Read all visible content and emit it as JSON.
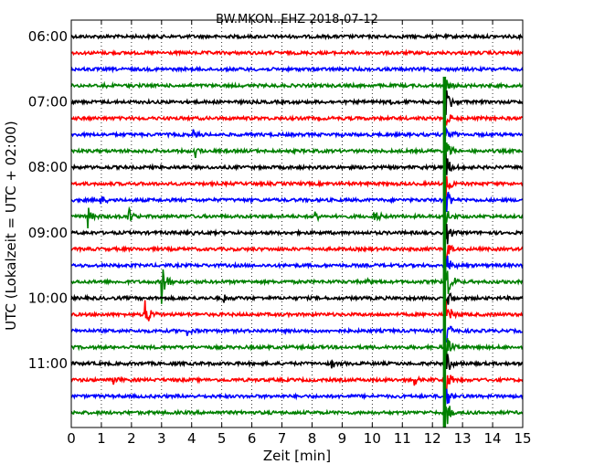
{
  "chart_data": {
    "type": "line",
    "title": "BW.MKON..EHZ 2018-07-12",
    "xlabel": "Zeit  [min]",
    "ylabel": "UTC (Lokalzeit = UTC + 02:00)",
    "xlim": [
      0,
      15
    ],
    "x_ticks": [
      0,
      1,
      2,
      3,
      4,
      5,
      6,
      7,
      8,
      9,
      10,
      11,
      12,
      13,
      14,
      15
    ],
    "x_tick_labels": [
      "0",
      "1",
      "2",
      "3",
      "4",
      "5",
      "6",
      "7",
      "8",
      "9",
      "10",
      "11",
      "12",
      "13",
      "14",
      "15"
    ],
    "grid": "vertical dotted at every minute",
    "y_tick_labels": [
      "06:00",
      "07:00",
      "08:00",
      "09:00",
      "10:00",
      "11:00"
    ],
    "y_tick_rows": [
      0,
      4,
      8,
      12,
      16,
      20
    ],
    "colors": [
      "#000000",
      "#ff0000",
      "#0000ff",
      "#008000"
    ],
    "traces": [
      {
        "start": "06:00",
        "color": "#000000",
        "events": []
      },
      {
        "start": "06:15",
        "color": "#ff0000",
        "events": []
      },
      {
        "start": "06:30",
        "color": "#0000ff",
        "events": []
      },
      {
        "start": "06:45",
        "color": "#008000",
        "events": [
          {
            "t": 1.0,
            "amp": 0.15
          },
          {
            "t": 12.4,
            "amp": 0.5
          }
        ]
      },
      {
        "start": "07:00",
        "color": "#000000",
        "events": [
          {
            "t": 10.6,
            "amp": 0.2
          },
          {
            "t": 12.4,
            "amp": 1.0
          }
        ]
      },
      {
        "start": "07:15",
        "color": "#ff0000",
        "events": [
          {
            "t": 12.4,
            "amp": 1.0
          }
        ]
      },
      {
        "start": "07:30",
        "color": "#0000ff",
        "events": [
          {
            "t": 4.05,
            "amp": 0.2
          },
          {
            "t": 12.4,
            "amp": 1.0
          }
        ]
      },
      {
        "start": "07:45",
        "color": "#008000",
        "events": [
          {
            "t": 4.1,
            "amp": 0.35
          },
          {
            "t": 12.4,
            "amp": 1.0
          }
        ]
      },
      {
        "start": "08:00",
        "color": "#000000",
        "events": [
          {
            "t": 12.4,
            "amp": 1.0
          }
        ]
      },
      {
        "start": "08:15",
        "color": "#ff0000",
        "events": [
          {
            "t": 12.4,
            "amp": 1.0
          }
        ]
      },
      {
        "start": "08:30",
        "color": "#0000ff",
        "events": [
          {
            "t": 0.95,
            "amp": 0.3
          },
          {
            "t": 12.4,
            "amp": 1.0
          }
        ]
      },
      {
        "start": "08:45",
        "color": "#008000",
        "events": [
          {
            "t": 0.55,
            "amp": 0.55
          },
          {
            "t": 1.85,
            "amp": 0.7
          },
          {
            "t": 8.1,
            "amp": 0.35
          },
          {
            "t": 10.05,
            "amp": 0.4
          },
          {
            "t": 12.4,
            "amp": 1.0
          }
        ]
      },
      {
        "start": "09:00",
        "color": "#000000",
        "events": [
          {
            "t": 3.85,
            "amp": 0.2
          },
          {
            "t": 12.4,
            "amp": 1.0
          }
        ]
      },
      {
        "start": "09:15",
        "color": "#ff0000",
        "events": [
          {
            "t": 12.4,
            "amp": 1.0
          }
        ]
      },
      {
        "start": "09:30",
        "color": "#0000ff",
        "events": [
          {
            "t": 12.4,
            "amp": 1.0
          }
        ]
      },
      {
        "start": "09:45",
        "color": "#008000",
        "events": [
          {
            "t": 3.0,
            "amp": 1.4
          },
          {
            "t": 9.85,
            "amp": 0.2
          },
          {
            "t": 12.4,
            "amp": 1.6
          }
        ]
      },
      {
        "start": "10:00",
        "color": "#000000",
        "events": [
          {
            "t": 5.05,
            "amp": 0.3
          },
          {
            "t": 12.4,
            "amp": 1.0
          }
        ]
      },
      {
        "start": "10:15",
        "color": "#ff0000",
        "events": [
          {
            "t": 2.45,
            "amp": 0.9
          },
          {
            "t": 12.4,
            "amp": 1.0
          }
        ]
      },
      {
        "start": "10:30",
        "color": "#0000ff",
        "events": [
          {
            "t": 3.8,
            "amp": 0.3
          },
          {
            "t": 12.4,
            "amp": 1.0
          }
        ]
      },
      {
        "start": "10:45",
        "color": "#008000",
        "events": [
          {
            "t": 12.4,
            "amp": 1.0
          }
        ]
      },
      {
        "start": "11:00",
        "color": "#000000",
        "events": [
          {
            "t": 8.65,
            "amp": 0.3
          },
          {
            "t": 12.4,
            "amp": 1.0
          }
        ]
      },
      {
        "start": "11:15",
        "color": "#ff0000",
        "events": [
          {
            "t": 1.4,
            "amp": 0.2
          },
          {
            "t": 11.4,
            "amp": 0.3
          },
          {
            "t": 12.4,
            "amp": 1.0
          }
        ]
      },
      {
        "start": "11:30",
        "color": "#0000ff",
        "events": [
          {
            "t": 12.4,
            "amp": 1.0
          }
        ]
      },
      {
        "start": "11:45",
        "color": "#008000",
        "events": [
          {
            "t": 12.4,
            "amp": 1.0
          }
        ]
      }
    ]
  }
}
